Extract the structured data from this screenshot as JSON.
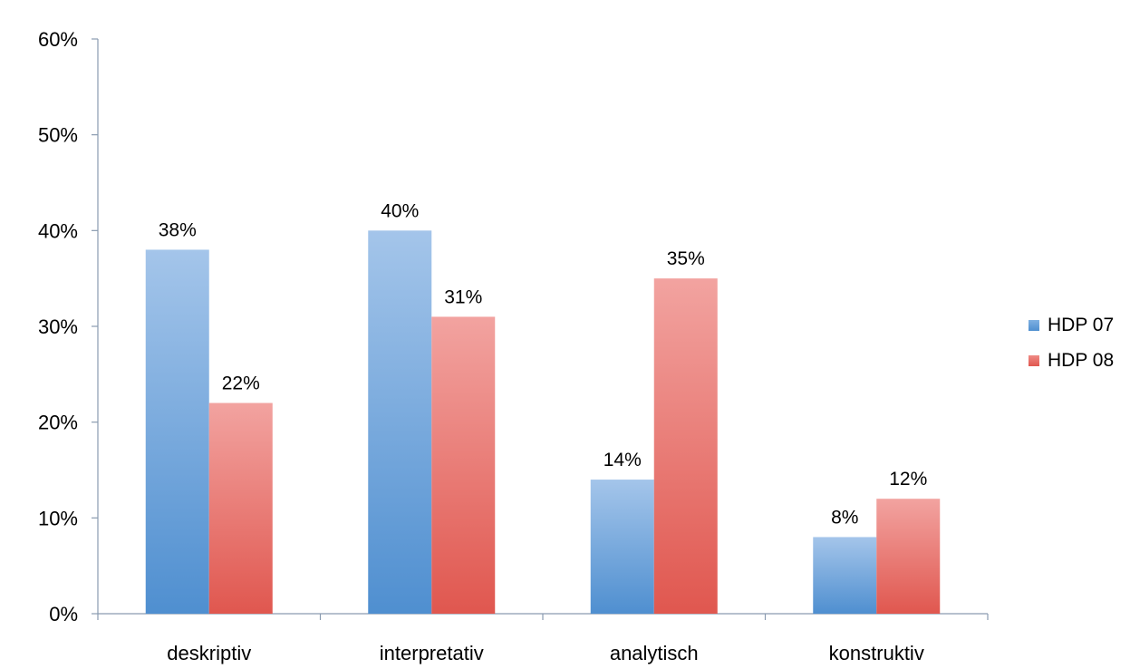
{
  "chart_data": {
    "type": "bar",
    "categories": [
      "deskriptiv",
      "interpretativ",
      "analytisch",
      "konstruktiv"
    ],
    "series": [
      {
        "name": "HDP 07",
        "values": [
          38,
          40,
          14,
          8
        ],
        "labels": [
          "38%",
          "40%",
          "14%",
          "8%"
        ],
        "color": "#5b9bd5"
      },
      {
        "name": "HDP 08",
        "values": [
          22,
          31,
          35,
          12
        ],
        "labels": [
          "22%",
          "31%",
          "35%",
          "12%"
        ],
        "color": "#e8615a"
      }
    ],
    "ylim": [
      0,
      60
    ],
    "yticks": [
      0,
      10,
      20,
      30,
      40,
      50,
      60
    ],
    "ytick_labels": [
      "0%",
      "10%",
      "20%",
      "30%",
      "40%",
      "50%",
      "60%"
    ],
    "title": "",
    "xlabel": "",
    "ylabel": "",
    "grid": false,
    "legend_position": "right"
  }
}
